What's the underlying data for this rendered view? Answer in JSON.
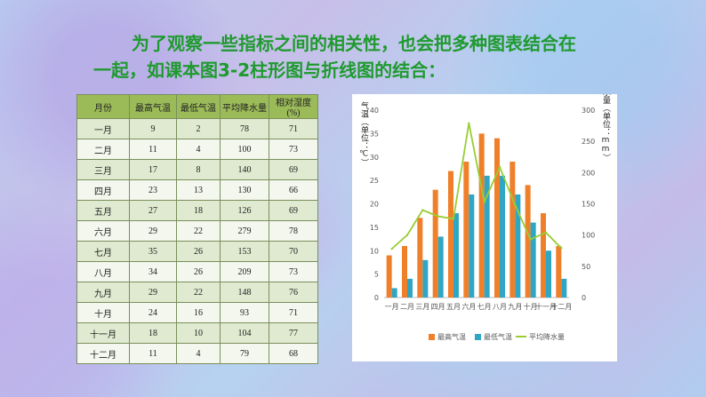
{
  "title": {
    "line1": "为了观察一些指标之间的相关性，也会把多种图表结合在",
    "line2": "一起，如课本图3-2柱形图与折线图的结合："
  },
  "table": {
    "headers": [
      "月份",
      "最高气温",
      "最低气温",
      "平均降水量",
      "相对湿度(%)"
    ],
    "rows": [
      [
        "一月",
        "9",
        "2",
        "78",
        "71"
      ],
      [
        "二月",
        "11",
        "4",
        "100",
        "73"
      ],
      [
        "三月",
        "17",
        "8",
        "140",
        "69"
      ],
      [
        "四月",
        "23",
        "13",
        "130",
        "66"
      ],
      [
        "五月",
        "27",
        "18",
        "126",
        "69"
      ],
      [
        "六月",
        "29",
        "22",
        "279",
        "78"
      ],
      [
        "七月",
        "35",
        "26",
        "153",
        "70"
      ],
      [
        "八月",
        "34",
        "26",
        "209",
        "73"
      ],
      [
        "九月",
        "29",
        "22",
        "148",
        "76"
      ],
      [
        "十月",
        "24",
        "16",
        "93",
        "71"
      ],
      [
        "十一月",
        "18",
        "10",
        "104",
        "77"
      ],
      [
        "十二月",
        "11",
        "4",
        "79",
        "68"
      ]
    ]
  },
  "chart_data": {
    "type": "bar",
    "categories": [
      "一月",
      "二月",
      "三月",
      "四月",
      "五月",
      "六月",
      "七月",
      "八月",
      "九月",
      "十月",
      "十一月",
      "十二月"
    ],
    "series": [
      {
        "name": "最高气温",
        "type": "bar",
        "axis": "left",
        "color": "#f07f2a",
        "values": [
          9,
          11,
          17,
          23,
          27,
          29,
          35,
          34,
          29,
          24,
          18,
          11
        ]
      },
      {
        "name": "最低气温",
        "type": "bar",
        "axis": "left",
        "color": "#2fa6c4",
        "values": [
          2,
          4,
          8,
          13,
          18,
          22,
          26,
          26,
          22,
          16,
          10,
          4
        ]
      },
      {
        "name": "平均降水量",
        "type": "line",
        "axis": "right",
        "color": "#9acd32",
        "values": [
          78,
          100,
          140,
          130,
          126,
          279,
          153,
          209,
          148,
          93,
          104,
          79
        ]
      }
    ],
    "ylabel": "气温（单位：℃）",
    "y2label": "降水量（单位：mm）",
    "ylim": [
      0,
      40
    ],
    "y2lim": [
      0,
      300
    ],
    "yticks": [
      "0",
      "5",
      "10",
      "15",
      "20",
      "25",
      "30",
      "35",
      "40"
    ],
    "y2ticks": [
      "0",
      "50",
      "100",
      "150",
      "200",
      "250",
      "300"
    ],
    "legend_position": "bottom",
    "grid": false
  }
}
